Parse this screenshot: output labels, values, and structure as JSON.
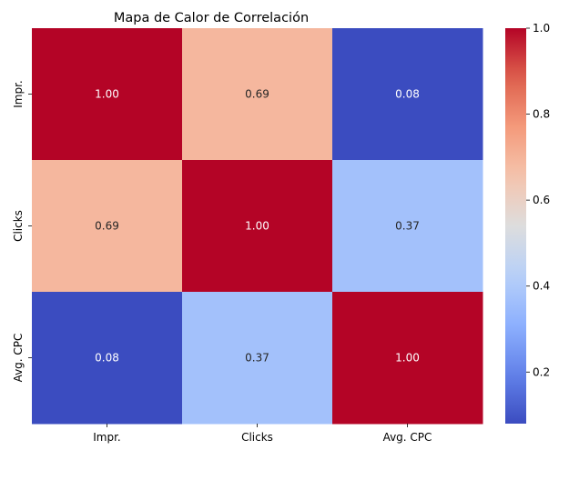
{
  "chart_data": {
    "type": "heatmap",
    "title": "Mapa de Calor de Correlación",
    "x_labels": [
      "Impr.",
      "Clicks",
      "Avg. CPC"
    ],
    "y_labels": [
      "Impr.",
      "Clicks",
      "Avg. CPC"
    ],
    "matrix": [
      [
        1.0,
        0.69,
        0.08
      ],
      [
        0.69,
        1.0,
        0.37
      ],
      [
        0.08,
        0.37,
        1.0
      ]
    ],
    "value_format": "0.00",
    "colormap": "coolwarm",
    "colorbar": {
      "min": 0.08,
      "max": 1.0,
      "ticks": [
        0.2,
        0.4,
        0.6,
        0.8,
        1.0
      ],
      "tick_labels": [
        "0.2",
        "0.4",
        "0.6",
        "0.8",
        "1.0"
      ]
    },
    "grid": false,
    "legend": "colorbar-right"
  }
}
